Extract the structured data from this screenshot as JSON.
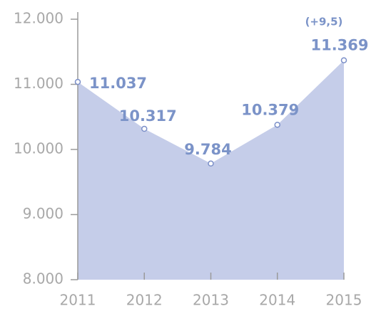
{
  "chart_data": {
    "type": "area",
    "categories": [
      "2011",
      "2012",
      "2013",
      "2014",
      "2015"
    ],
    "values": [
      11037,
      10317,
      9784,
      10379,
      11369
    ],
    "value_labels": [
      "11.037",
      "10.317",
      "9.784",
      "10.379",
      "11.369"
    ],
    "color": "#c5cde9",
    "marker_color": "#7b8fc8",
    "label_color": "#7b93c8",
    "ylim": [
      8000,
      12000
    ],
    "yticks": [
      {
        "value": 8000,
        "label": "8.000"
      },
      {
        "value": 9000,
        "label": "9.000"
      },
      {
        "value": 10000,
        "label": "10.000"
      },
      {
        "value": 11000,
        "label": "11.000"
      },
      {
        "value": 12000,
        "label": "12.000"
      }
    ],
    "annotation": "(+9,5)"
  }
}
